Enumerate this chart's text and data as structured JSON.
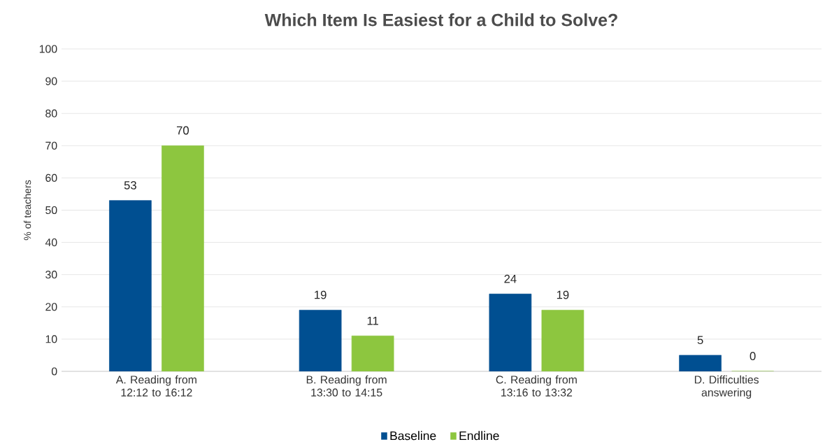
{
  "chart_data": {
    "type": "bar",
    "title": "Which Item Is Easiest for a Child to Solve?",
    "ylabel": "% of teachers",
    "categories": [
      "A. Reading from 12:12 to 16:12",
      "B. Reading from 13:30 to 14:15",
      "C. Reading from 13:16 to 13:32",
      "D. Difficulties answering"
    ],
    "series": [
      {
        "name": "Baseline",
        "color": "#004f91",
        "values": [
          53,
          19,
          24,
          5
        ]
      },
      {
        "name": "Endline",
        "color": "#8dc63f",
        "values": [
          70,
          11,
          19,
          0
        ]
      }
    ],
    "ylim": [
      0,
      100
    ],
    "yticks": [
      0,
      10,
      20,
      30,
      40,
      50,
      60,
      70,
      80,
      90,
      100
    ],
    "grid": "y",
    "legend": "bottom",
    "data_labels": true
  }
}
